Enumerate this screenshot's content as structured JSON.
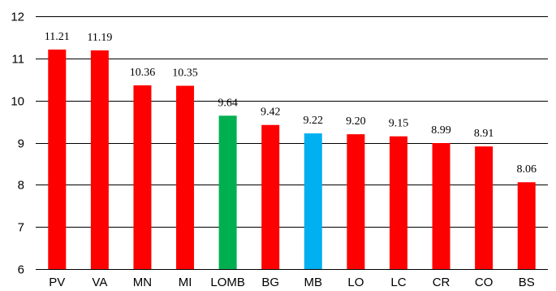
{
  "chart_data": {
    "type": "bar",
    "title": "",
    "xlabel": "",
    "ylabel": "",
    "ylim": [
      6,
      12
    ],
    "yticks": [
      6,
      7,
      8,
      9,
      10,
      11,
      12
    ],
    "grid": true,
    "legend": "none",
    "categories": [
      "PV",
      "VA",
      "MN",
      "MI",
      "LOMB",
      "BG",
      "MB",
      "LO",
      "LC",
      "CR",
      "CO",
      "BS"
    ],
    "values": [
      11.21,
      11.19,
      10.36,
      10.35,
      9.64,
      9.42,
      9.22,
      9.2,
      9.15,
      8.99,
      8.91,
      8.06
    ],
    "data_labels": [
      "11.21",
      "11.19",
      "10.36",
      "10.35",
      "9.64",
      "9.42",
      "9.22",
      "9.20",
      "9.15",
      "8.99",
      "8.91",
      "8.06"
    ],
    "colors": {
      "default": "#ff0000",
      "LOMB": "#00b050",
      "MB": "#00b0f0"
    }
  }
}
